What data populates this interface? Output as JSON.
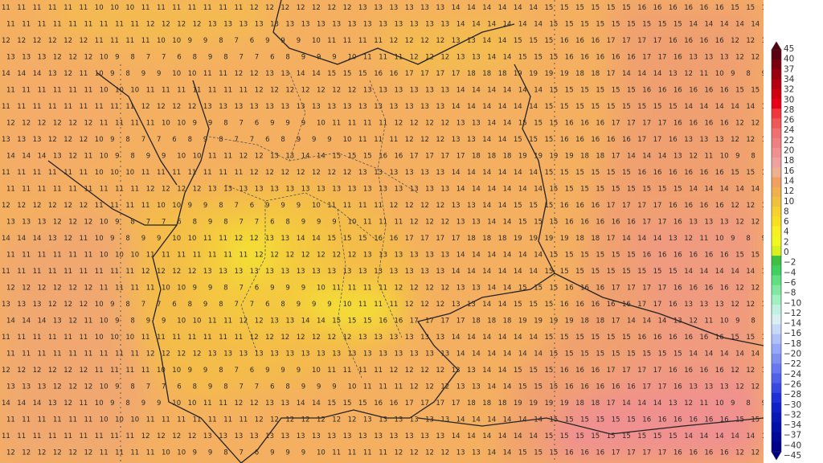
{
  "map": {
    "region": "Germany and neighbouring countries",
    "grid_values_sample_rows": [
      "11 11 11 11 11 11 10 10 10 11 11 11 11 11 11 11 12 12 12 12 12 12 12 13 13 13 13 13 13 14 14 14 14 14 14 15 15 15 15 15 15 16 16 16 16 16 16 15 15",
      "11 11 11 11 11 11 11 11 11 12 12 12 12 13 13 13 13 13 13 13 13 13 13 13 13 13 13 13 13 14 14 14 14 14 14 15 15 15 15 15 15 15 15 15 14 14 14 14 14",
      "12 12 12 12 12 12 11 11 11 11 10 10 9 9 8 7 6 9 9 9 10 11 11 11 11 12 12 12 12 13 13 14 14 15 15 15 16 16 16 17 17 17 17 16 16 16 16",
      "13 13 13 12 12 12 10 9 8 7 7 6 8 9 8 7 7 6 8 9 9 9 10 11 11 11 12 12 12 13 13 14 14 15 15 15 16 16 16 16 16 17 17 16",
      "14 14 14 13 12 11 10 9 8 9 9 10 10 11 11 12 12 13 13 14 14 15 15 15 16 16 17 17 17 17 18 18 18 19 19 19 19 18 18 17"
    ]
  },
  "legend": {
    "labels": [
      "45",
      "40",
      "37",
      "34",
      "32",
      "30",
      "28",
      "26",
      "24",
      "22",
      "20",
      "18",
      "16",
      "14",
      "12",
      "10",
      "8",
      "6",
      "4",
      "2",
      "0",
      "−2",
      "−4",
      "−6",
      "−8",
      "−10",
      "−12",
      "−14",
      "−16",
      "−18",
      "−20",
      "−22",
      "−24",
      "−26",
      "−28",
      "−30",
      "−32",
      "−34",
      "−37",
      "−40",
      "−45"
    ],
    "colors": [
      "#5a0010",
      "#7a0010",
      "#9a0010",
      "#b40010",
      "#d00010",
      "#e80018",
      "#f0383c",
      "#f05858",
      "#f07070",
      "#f08080",
      "#f09090",
      "#f0a0a0",
      "#f0b090",
      "#f0a060",
      "#f0b050",
      "#f0c040",
      "#f8d030",
      "#f8e020",
      "#f8f020",
      "#f0f820",
      "#d8f020",
      "#40c040",
      "#40d060",
      "#60e080",
      "#80e8a0",
      "#a0f0c0",
      "#c0f0e0",
      "#d8f0f0",
      "#c8d8f8",
      "#b0c0f8",
      "#98a8f8",
      "#8090f0",
      "#6878f0",
      "#5060e8",
      "#3848e0",
      "#2030d8",
      "#1020c8",
      "#0818b8",
      "#0010a8",
      "#000898",
      "#000088"
    ]
  }
}
